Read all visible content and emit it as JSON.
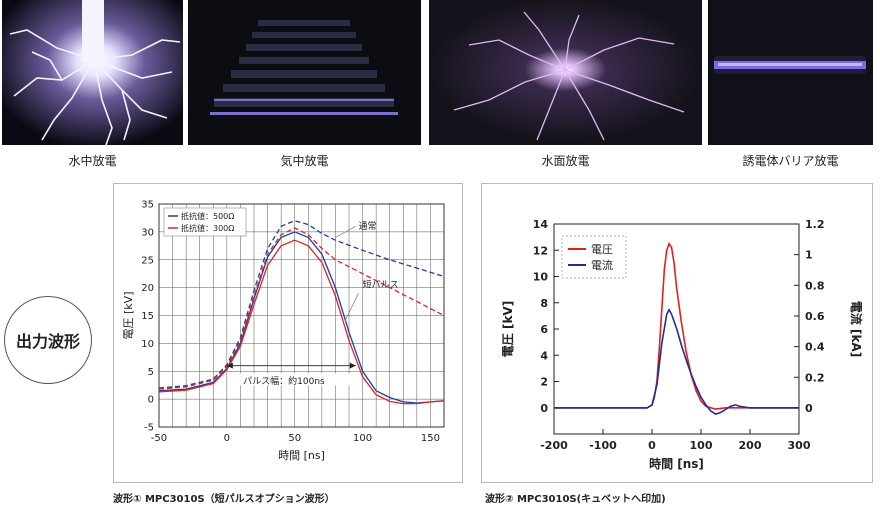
{
  "photos": [
    {
      "label": "水中放電"
    },
    {
      "label": "気中放電"
    },
    {
      "label": "水面放電"
    },
    {
      "label": "誘電体バリア放電"
    }
  ],
  "badge": "出力波形",
  "notes": {
    "left": "波形① MPC3010S（短パルスオプション波形）",
    "right": "波形② MPC3010S(キュベットへ印加)"
  },
  "chart_data": [
    {
      "type": "line",
      "xlabel": "時間 [ns]",
      "ylabel": "電圧 [kV]",
      "xlim": [
        -50,
        160
      ],
      "ylim": [
        -5,
        35
      ],
      "xticks": [
        -50,
        0,
        50,
        100,
        150
      ],
      "yticks": [
        -5,
        0,
        5,
        10,
        15,
        20,
        25,
        30,
        35
      ],
      "grid": true,
      "legend_position": "top-left",
      "legend": [
        "抵抗値：500Ω",
        "抵抗値：300Ω"
      ],
      "annotations": [
        "通常",
        "短パルス",
        "パルス幅：約100ns"
      ],
      "series": [
        {
          "name": "抵抗値：500Ω",
          "style": "solid",
          "color": "#1f3f9f",
          "x": [
            -50,
            -30,
            -10,
            0,
            10,
            20,
            30,
            40,
            50,
            60,
            70,
            80,
            90,
            100,
            110,
            120,
            130,
            140,
            150,
            160
          ],
          "y": [
            1.5,
            1.8,
            3.0,
            5.5,
            10.0,
            18.0,
            25.5,
            29.0,
            30.0,
            29.0,
            26.0,
            20.0,
            12.0,
            5.0,
            1.5,
            0.3,
            -0.5,
            -0.7,
            -0.5,
            -0.3
          ]
        },
        {
          "name": "抵抗値：300Ω",
          "style": "solid",
          "color": "#d62728",
          "x": [
            -50,
            -30,
            -10,
            0,
            10,
            20,
            30,
            40,
            50,
            60,
            70,
            80,
            90,
            100,
            110,
            120,
            130,
            140,
            150,
            160
          ],
          "y": [
            1.3,
            1.6,
            2.8,
            5.3,
            9.5,
            17.0,
            24.0,
            27.5,
            28.5,
            27.5,
            24.5,
            18.5,
            10.5,
            4.0,
            0.8,
            -0.4,
            -0.8,
            -0.8,
            -0.5,
            -0.3
          ]
        },
        {
          "name": "通常 500Ω",
          "style": "dashed",
          "color": "#1f3f9f",
          "x": [
            -50,
            -30,
            -10,
            0,
            10,
            20,
            30,
            40,
            50,
            60,
            70,
            80,
            100,
            120,
            140,
            160
          ],
          "y": [
            2.0,
            2.4,
            3.6,
            6.2,
            11.0,
            19.5,
            27.0,
            31.0,
            32.0,
            31.3,
            29.7,
            28.5,
            26.7,
            25.0,
            23.5,
            22.0
          ]
        },
        {
          "name": "通常 300Ω",
          "style": "dashed",
          "color": "#d62728",
          "x": [
            -50,
            -30,
            -10,
            0,
            10,
            20,
            30,
            40,
            50,
            60,
            70,
            80,
            100,
            120,
            140,
            160
          ],
          "y": [
            1.8,
            2.2,
            3.4,
            5.9,
            10.5,
            18.5,
            26.0,
            29.5,
            30.7,
            29.5,
            27.0,
            25.0,
            22.5,
            20.0,
            17.5,
            15.0
          ]
        }
      ]
    },
    {
      "type": "line",
      "xlabel": "時間 [ns]",
      "ylabel": "電圧 [kV]",
      "y2label": "電流 [kA]",
      "xlim": [
        -200,
        300
      ],
      "ylim": [
        -2,
        14
      ],
      "y2lim": [
        -0.17,
        1.2
      ],
      "xticks": [
        -200,
        -100,
        0,
        100,
        200,
        300
      ],
      "yticks": [
        0,
        2,
        4,
        6,
        8,
        10,
        12,
        14
      ],
      "y2ticks": [
        0,
        0.2,
        0.4,
        0.6,
        0.8,
        1,
        1.2
      ],
      "grid": false,
      "legend_position": "top-left",
      "legend": [
        "電圧",
        "電流"
      ],
      "series": [
        {
          "name": "電圧",
          "color": "#e02020",
          "axis": "left",
          "x": [
            -200,
            -150,
            -100,
            -50,
            -10,
            0,
            5,
            10,
            15,
            20,
            25,
            30,
            35,
            40,
            45,
            50,
            60,
            70,
            80,
            90,
            100,
            110,
            130,
            150,
            200,
            250,
            300
          ],
          "y": [
            0,
            0,
            0,
            0,
            0,
            0.2,
            0.8,
            2.0,
            4.5,
            7.5,
            10.5,
            12.0,
            12.5,
            12.2,
            11.0,
            9.2,
            6.5,
            4.2,
            2.5,
            1.3,
            0.5,
            0.1,
            -0.1,
            0,
            0,
            0,
            0
          ]
        },
        {
          "name": "電流",
          "color": "#1f2f8f",
          "axis": "right",
          "x": [
            -200,
            -150,
            -100,
            -50,
            -10,
            0,
            10,
            20,
            30,
            35,
            40,
            50,
            60,
            70,
            80,
            90,
            100,
            110,
            120,
            130,
            140,
            150,
            160,
            170,
            180,
            200,
            250,
            300
          ],
          "y": [
            0,
            0,
            0,
            0,
            0,
            0.02,
            0.15,
            0.42,
            0.61,
            0.64,
            0.61,
            0.52,
            0.41,
            0.31,
            0.22,
            0.14,
            0.07,
            0.02,
            -0.02,
            -0.04,
            -0.03,
            -0.01,
            0.01,
            0.02,
            0.01,
            0,
            0,
            0
          ]
        }
      ]
    }
  ]
}
